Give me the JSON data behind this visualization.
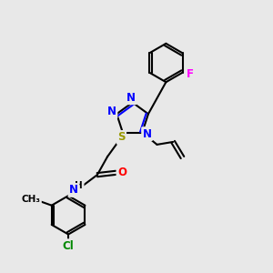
{
  "background_color": "#e8e8e8",
  "atom_colors": {
    "N": "#0000ff",
    "O": "#ff0000",
    "S": "#999900",
    "F": "#ff00ff",
    "Cl": "#008800",
    "C": "#000000",
    "H": "#404040"
  },
  "lw": 1.5
}
